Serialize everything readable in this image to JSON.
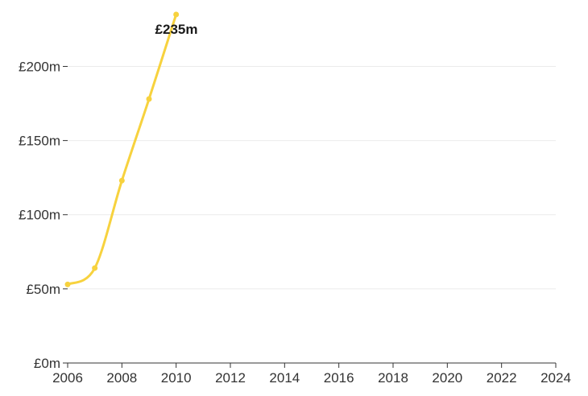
{
  "chart_data": {
    "type": "line",
    "title": "",
    "xlabel": "",
    "ylabel": "",
    "x": [
      2006,
      2007,
      2008,
      2009,
      2010
    ],
    "series": [
      {
        "values": [
          53,
          64,
          123,
          178,
          235
        ]
      }
    ],
    "xlim": [
      2006,
      2024
    ],
    "ylim": [
      0,
      235
    ],
    "x_ticks": [
      "2006",
      "2008",
      "2010",
      "2012",
      "2014",
      "2016",
      "2018",
      "2020",
      "2022",
      "2024"
    ],
    "y_ticks": [
      "£0m",
      "£50m",
      "£100m",
      "£150m",
      "£200m"
    ],
    "y_tick_values": [
      0,
      50,
      100,
      150,
      200
    ],
    "end_label": "£235m",
    "grid": "horizontal",
    "line_color": "#f7d23e"
  }
}
